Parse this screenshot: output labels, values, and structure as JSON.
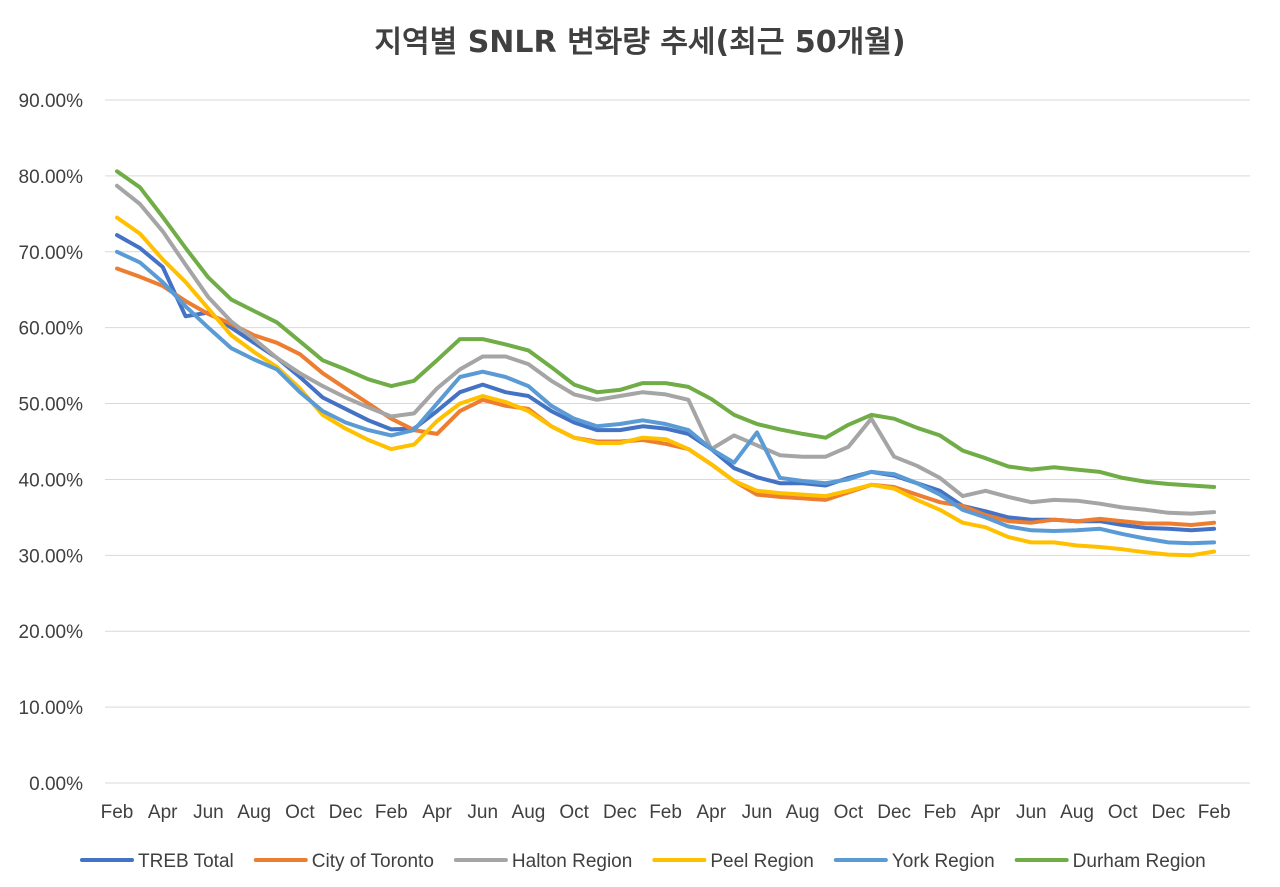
{
  "chart_data": {
    "type": "line",
    "title": "지역별 SNLR 변화량 추세(최근 50개월)",
    "xlabel": "",
    "ylabel": "",
    "ylim": [
      0,
      0.9
    ],
    "yticks": [
      0,
      0.1,
      0.2,
      0.3,
      0.4,
      0.5,
      0.6,
      0.7,
      0.8,
      0.9
    ],
    "ytick_labels": [
      "0.00%",
      "10.00%",
      "20.00%",
      "30.00%",
      "40.00%",
      "50.00%",
      "60.00%",
      "70.00%",
      "80.00%",
      "90.00%"
    ],
    "x_count": 50,
    "xtick_labels": [
      "Feb",
      "Apr",
      "Jun",
      "Aug",
      "Oct",
      "Dec",
      "Feb",
      "Apr",
      "Jun",
      "Aug",
      "Oct",
      "Dec",
      "Feb",
      "Apr",
      "Jun",
      "Aug",
      "Oct",
      "Dec",
      "Feb",
      "Apr",
      "Jun",
      "Aug",
      "Oct",
      "Dec",
      "Feb"
    ],
    "xtick_index": [
      0,
      2,
      4,
      6,
      8,
      10,
      12,
      14,
      16,
      18,
      20,
      22,
      24,
      26,
      28,
      30,
      32,
      34,
      36,
      38,
      40,
      42,
      44,
      46,
      48
    ],
    "grid": true,
    "legend_position": "bottom",
    "series": [
      {
        "name": "TREB Total",
        "color": "#4472C4",
        "values": [
          0.722,
          0.705,
          0.68,
          0.615,
          0.62,
          0.6,
          0.58,
          0.56,
          0.535,
          0.508,
          0.493,
          0.478,
          0.466,
          0.467,
          0.49,
          0.515,
          0.525,
          0.515,
          0.51,
          0.49,
          0.475,
          0.465,
          0.465,
          0.47,
          0.467,
          0.46,
          0.44,
          0.415,
          0.403,
          0.395,
          0.395,
          0.392,
          0.402,
          0.41,
          0.405,
          0.395,
          0.385,
          0.365,
          0.358,
          0.35,
          0.347,
          0.347,
          0.345,
          0.345,
          0.34,
          0.336,
          0.335,
          0.333,
          0.335,
          null
        ]
      },
      {
        "name": "City of Toronto",
        "color": "#ED7D31",
        "values": [
          0.678,
          0.667,
          0.655,
          0.635,
          0.618,
          0.605,
          0.59,
          0.58,
          0.565,
          0.54,
          0.52,
          0.5,
          0.48,
          0.465,
          0.46,
          0.49,
          0.505,
          0.497,
          0.493,
          0.47,
          0.455,
          0.45,
          0.45,
          0.452,
          0.447,
          0.44,
          0.42,
          0.398,
          0.38,
          0.377,
          0.375,
          0.373,
          0.383,
          0.393,
          0.39,
          0.38,
          0.37,
          0.365,
          0.353,
          0.345,
          0.343,
          0.347,
          0.345,
          0.348,
          0.345,
          0.342,
          0.342,
          0.34,
          0.343,
          null
        ]
      },
      {
        "name": "Halton Region",
        "color": "#A5A5A5",
        "values": [
          0.787,
          0.763,
          0.727,
          0.683,
          0.64,
          0.608,
          0.585,
          0.56,
          0.54,
          0.523,
          0.508,
          0.495,
          0.483,
          0.487,
          0.52,
          0.545,
          0.562,
          0.562,
          0.552,
          0.53,
          0.512,
          0.505,
          0.51,
          0.515,
          0.512,
          0.505,
          0.44,
          0.458,
          0.445,
          0.432,
          0.43,
          0.43,
          0.443,
          0.48,
          0.43,
          0.418,
          0.402,
          0.378,
          0.385,
          0.377,
          0.37,
          0.373,
          0.372,
          0.368,
          0.363,
          0.36,
          0.356,
          0.355,
          0.357,
          null
        ]
      },
      {
        "name": "Peel Region",
        "color": "#FFC000",
        "values": [
          0.745,
          0.724,
          0.69,
          0.66,
          0.625,
          0.59,
          0.568,
          0.548,
          0.52,
          0.485,
          0.467,
          0.452,
          0.44,
          0.446,
          0.477,
          0.5,
          0.51,
          0.502,
          0.49,
          0.47,
          0.455,
          0.448,
          0.448,
          0.455,
          0.453,
          0.44,
          0.42,
          0.398,
          0.385,
          0.382,
          0.38,
          0.378,
          0.385,
          0.393,
          0.388,
          0.373,
          0.36,
          0.343,
          0.337,
          0.324,
          0.317,
          0.317,
          0.313,
          0.311,
          0.308,
          0.304,
          0.301,
          0.3,
          0.305,
          null
        ]
      },
      {
        "name": "York Region",
        "color": "#5B9BD5",
        "values": [
          0.7,
          0.686,
          0.66,
          0.628,
          0.6,
          0.573,
          0.558,
          0.545,
          0.515,
          0.49,
          0.475,
          0.465,
          0.458,
          0.465,
          0.5,
          0.535,
          0.542,
          0.535,
          0.523,
          0.497,
          0.48,
          0.47,
          0.473,
          0.478,
          0.473,
          0.465,
          0.44,
          0.422,
          0.462,
          0.402,
          0.398,
          0.395,
          0.4,
          0.41,
          0.407,
          0.395,
          0.38,
          0.36,
          0.35,
          0.338,
          0.333,
          0.332,
          0.333,
          0.335,
          0.328,
          0.322,
          0.317,
          0.316,
          0.317,
          null
        ]
      },
      {
        "name": "Durham Region",
        "color": "#70AD47",
        "values": [
          0.806,
          0.785,
          0.746,
          0.705,
          0.666,
          0.637,
          0.622,
          0.607,
          0.582,
          0.557,
          0.545,
          0.532,
          0.523,
          0.53,
          0.557,
          0.585,
          0.585,
          0.578,
          0.57,
          0.548,
          0.525,
          0.515,
          0.518,
          0.527,
          0.527,
          0.522,
          0.506,
          0.485,
          0.473,
          0.466,
          0.46,
          0.455,
          0.472,
          0.485,
          0.48,
          0.468,
          0.458,
          0.438,
          0.428,
          0.417,
          0.413,
          0.416,
          0.413,
          0.41,
          0.402,
          0.397,
          0.394,
          0.392,
          0.39,
          null
        ]
      }
    ]
  }
}
